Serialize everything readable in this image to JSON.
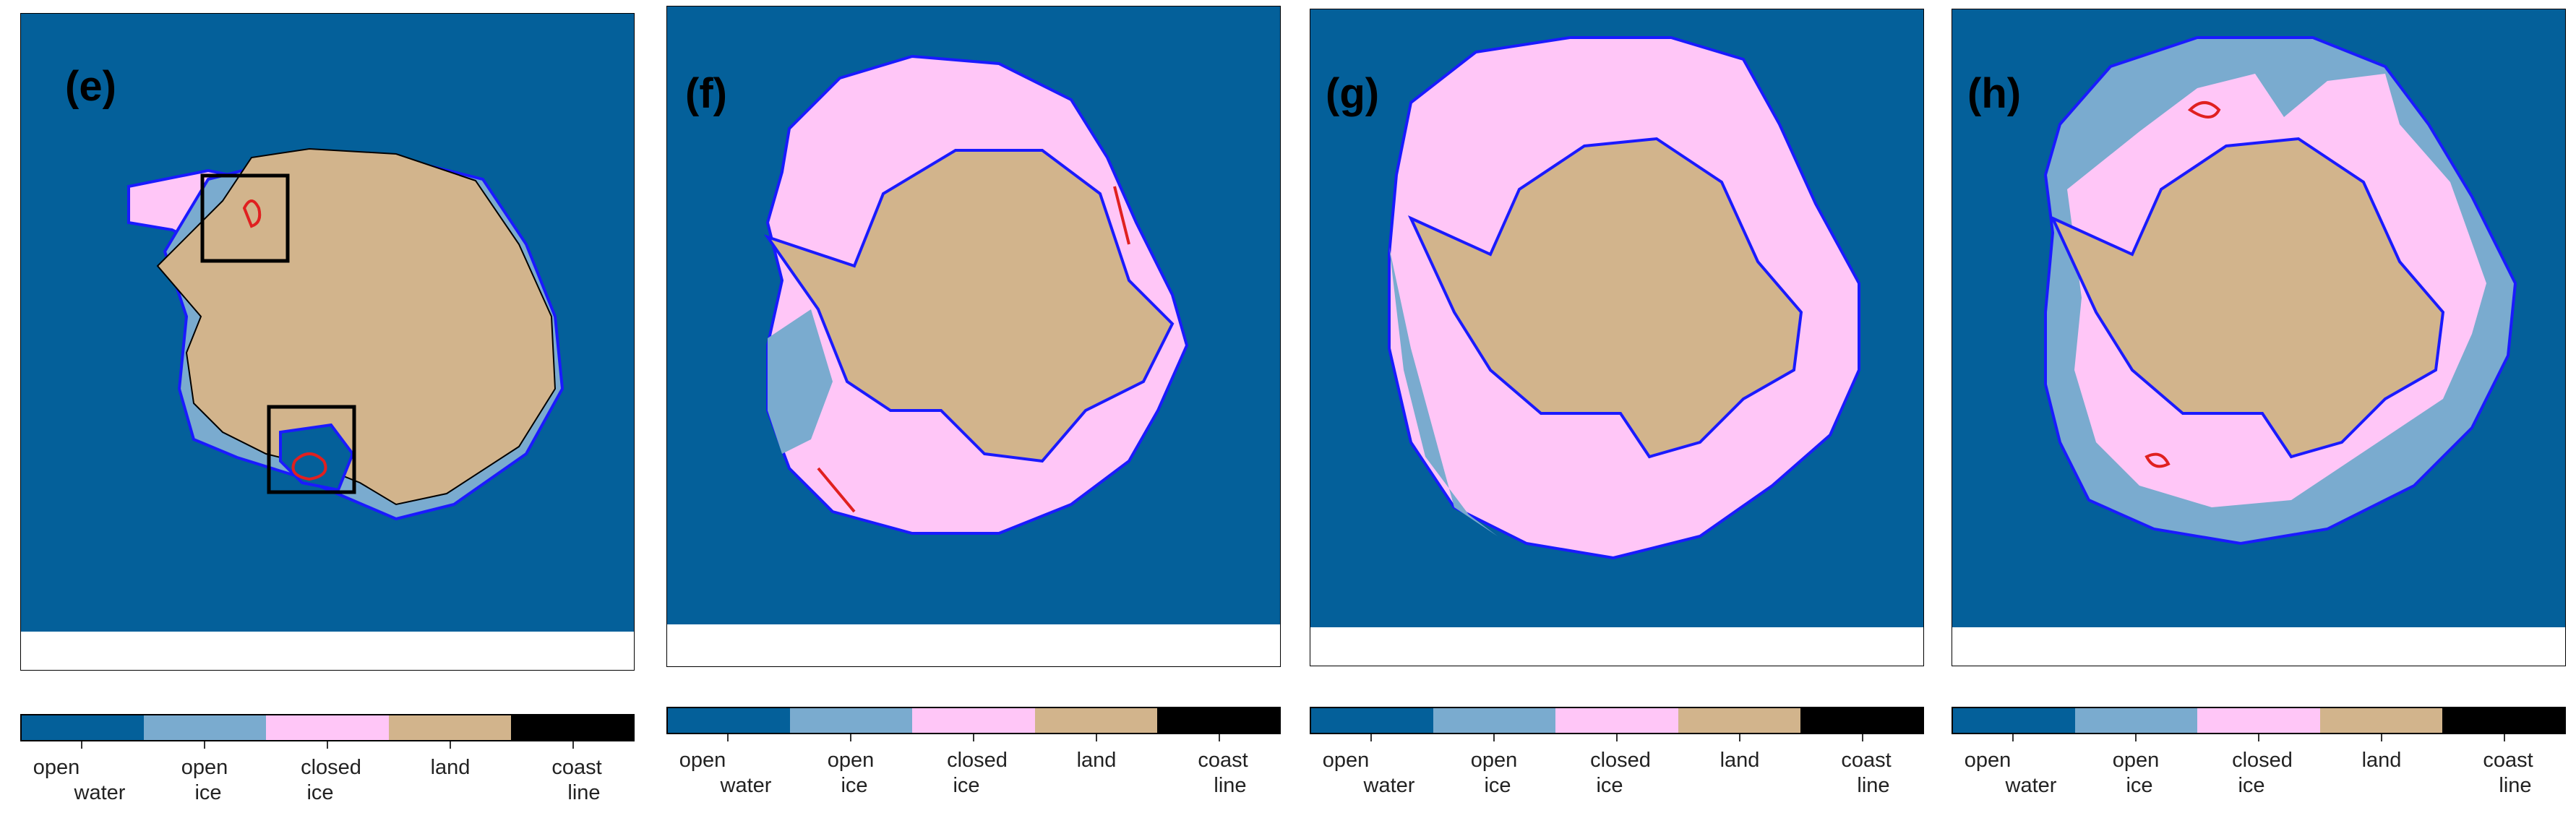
{
  "colors": {
    "open_water": "#04609a",
    "open_ice": "#7aabcf",
    "closed_ice": "#ffc6f7",
    "land": "#d2b48c",
    "coast_line": "#000000",
    "contour_blue": "#1a1aff",
    "contour_red": "#e02020",
    "box": "#000000"
  },
  "panels": [
    {
      "label": "(e)"
    },
    {
      "label": "(f)"
    },
    {
      "label": "(g)"
    },
    {
      "label": "(h)"
    }
  ],
  "legend": {
    "classes": [
      {
        "key": "open_water",
        "line1": "open",
        "line2": "water"
      },
      {
        "key": "open_ice",
        "line1": "open",
        "line2": "ice"
      },
      {
        "key": "closed_ice",
        "line1": "closed",
        "line2": "ice"
      },
      {
        "key": "land",
        "line1": "land",
        "line2": ""
      },
      {
        "key": "coast_line",
        "line1": "coast",
        "line2": "line"
      }
    ]
  }
}
